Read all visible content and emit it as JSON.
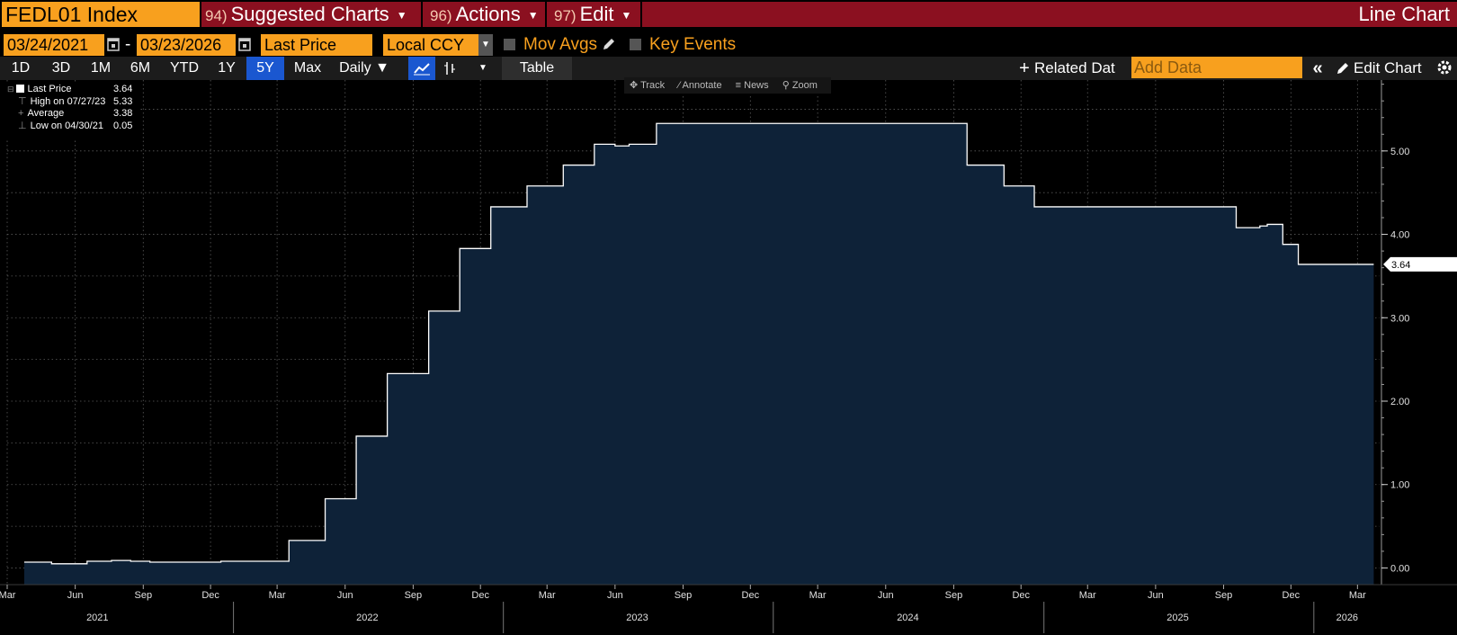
{
  "header": {
    "ticker": "FEDL01 Index",
    "menus": [
      {
        "num": "94)",
        "label": "Suggested Charts"
      },
      {
        "num": "96)",
        "label": "Actions"
      },
      {
        "num": "97)",
        "label": "Edit"
      }
    ],
    "chart_type": "Line Chart"
  },
  "controls": {
    "start_date": "03/24/2021",
    "dash": "-",
    "end_date": "03/23/2026",
    "field": "Last Price",
    "currency": "Local CCY",
    "mov_avgs": "Mov Avgs",
    "key_events": "Key Events"
  },
  "toolbar": {
    "ranges": [
      "1D",
      "3D",
      "1M",
      "6M",
      "YTD",
      "1Y",
      "5Y",
      "Max"
    ],
    "active_range": "5Y",
    "frequency": "Daily ▼",
    "table": "Table",
    "related": "Related Dat",
    "add_data_placeholder": "Add Data",
    "edit_chart": "Edit Chart"
  },
  "legend": {
    "rows": [
      {
        "label": "Last Price",
        "value": "3.64"
      },
      {
        "label": "High on 07/27/23",
        "value": "5.33"
      },
      {
        "label": "Average",
        "value": "3.38"
      },
      {
        "label": "Low on 04/30/21",
        "value": "0.05"
      }
    ]
  },
  "plot_tools": [
    "Track",
    "Annotate",
    "News",
    "Zoom"
  ],
  "colors": {
    "accent": "#f8a01e",
    "header_bar": "#8b1020",
    "area_fill": "#0e2238",
    "line": "#ffffff",
    "active_tab": "#1a57d0"
  },
  "chart_data": {
    "type": "area",
    "title": "",
    "xlabel": "",
    "ylabel": "",
    "ylim": [
      -0.2,
      5.85
    ],
    "xlim": [
      "2021-03-01",
      "2026-03-31"
    ],
    "yticks": [
      "0.00",
      "1.00",
      "2.00",
      "3.00",
      "4.00",
      "5.00"
    ],
    "last_value_label": "3.64",
    "month_ticks": [
      {
        "date": "2021-03-01",
        "label": "Mar"
      },
      {
        "date": "2021-06-01",
        "label": "Jun"
      },
      {
        "date": "2021-09-01",
        "label": "Sep"
      },
      {
        "date": "2021-12-01",
        "label": "Dec"
      },
      {
        "date": "2022-03-01",
        "label": "Mar"
      },
      {
        "date": "2022-06-01",
        "label": "Jun"
      },
      {
        "date": "2022-09-01",
        "label": "Sep"
      },
      {
        "date": "2022-12-01",
        "label": "Dec"
      },
      {
        "date": "2023-03-01",
        "label": "Mar"
      },
      {
        "date": "2023-06-01",
        "label": "Jun"
      },
      {
        "date": "2023-09-01",
        "label": "Sep"
      },
      {
        "date": "2023-12-01",
        "label": "Dec"
      },
      {
        "date": "2024-03-01",
        "label": "Mar"
      },
      {
        "date": "2024-06-01",
        "label": "Jun"
      },
      {
        "date": "2024-09-01",
        "label": "Sep"
      },
      {
        "date": "2024-12-01",
        "label": "Dec"
      },
      {
        "date": "2025-03-01",
        "label": "Mar"
      },
      {
        "date": "2025-06-01",
        "label": "Jun"
      },
      {
        "date": "2025-09-01",
        "label": "Sep"
      },
      {
        "date": "2025-12-01",
        "label": "Dec"
      },
      {
        "date": "2026-03-01",
        "label": "Mar"
      }
    ],
    "year_ticks": [
      {
        "date": "2021-07-01",
        "label": "2021"
      },
      {
        "date": "2022-07-01",
        "label": "2022"
      },
      {
        "date": "2023-07-01",
        "label": "2023"
      },
      {
        "date": "2024-07-01",
        "label": "2024"
      },
      {
        "date": "2025-07-01",
        "label": "2025"
      },
      {
        "date": "2026-02-15",
        "label": "2026"
      }
    ],
    "year_boundaries": [
      "2022-01-01",
      "2023-01-01",
      "2024-01-01",
      "2025-01-01",
      "2026-01-01"
    ],
    "series": [
      {
        "x": [
          "2021-03-24",
          "2021-04-30",
          "2021-06-17",
          "2021-07-20",
          "2021-08-15",
          "2021-09-10",
          "2021-12-15",
          "2022-03-17",
          "2022-05-05",
          "2022-06-16",
          "2022-07-28",
          "2022-09-22",
          "2022-11-03",
          "2022-12-15",
          "2023-02-02",
          "2023-03-23",
          "2023-05-04",
          "2023-06-01",
          "2023-06-20",
          "2023-07-27",
          "2024-09-19",
          "2024-11-08",
          "2024-12-19",
          "2025-09-18",
          "2025-10-20",
          "2025-10-30",
          "2025-11-20",
          "2025-12-11",
          "2026-03-23"
        ],
        "y": [
          0.07,
          0.05,
          0.08,
          0.09,
          0.08,
          0.07,
          0.08,
          0.33,
          0.83,
          1.58,
          2.33,
          3.08,
          3.83,
          4.33,
          4.58,
          4.83,
          5.08,
          5.06,
          5.08,
          5.33,
          4.83,
          4.58,
          4.33,
          4.08,
          4.1,
          4.12,
          3.88,
          3.64,
          3.64
        ]
      }
    ]
  }
}
